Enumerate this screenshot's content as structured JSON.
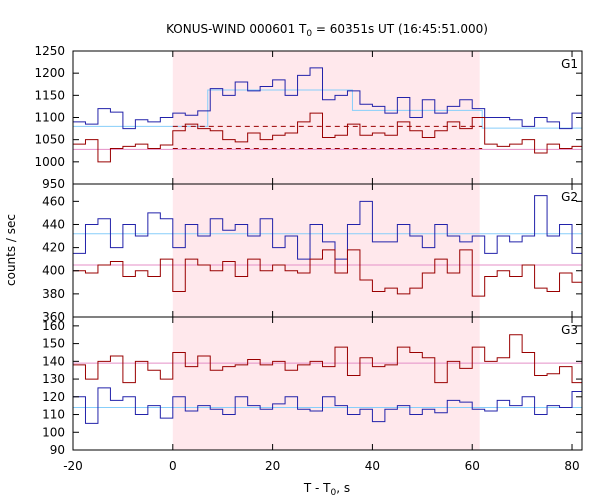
{
  "chart_data": {
    "type": "line",
    "title": "KONUS-WIND 000601 T",
    "title_sub": "0",
    "title_rest": " = 60351s UT (16:45:51.000)",
    "xlabel": "T - T",
    "xlabel_sub": "0",
    "xlabel_rest": ", s",
    "ylabel": "counts / sec",
    "xlim": [
      -20,
      82
    ],
    "xticks": [
      -20,
      0,
      20,
      40,
      60,
      80
    ],
    "xtick_labels": [
      "-20",
      "0",
      "20",
      "40",
      "60",
      "80"
    ],
    "shaded_interval": [
      0,
      61.5
    ],
    "colors": {
      "blue": "#2222aa",
      "red": "#990000",
      "cyan": "#87cefa",
      "pink": "#e48fc7",
      "shade": "#ffe8ec"
    },
    "panels": [
      {
        "label": "G1",
        "ylim": [
          950,
          1250
        ],
        "yticks": [
          950,
          1000,
          1050,
          1100,
          1150,
          1200,
          1250
        ],
        "ytick_labels": [
          "950",
          "1000",
          "1050",
          "1100",
          "1150",
          "1200",
          "1250"
        ],
        "bin_edges": [
          -20,
          -17.5,
          -15,
          -12.5,
          -10,
          -7.5,
          -5,
          -2.5,
          0,
          2.5,
          5,
          7.5,
          10,
          12.5,
          15,
          17.5,
          20,
          22.5,
          25,
          27.5,
          30,
          32.5,
          35,
          37.5,
          40,
          42.5,
          45,
          47.5,
          50,
          52.5,
          55,
          57.5,
          60,
          62.5,
          65,
          67.5,
          70,
          72.5,
          75,
          77.5,
          80,
          82
        ],
        "series": [
          {
            "color": "blue",
            "values": [
              1090,
              1085,
              1120,
              1112,
              1075,
              1095,
              1090,
              1100,
              1110,
              1105,
              1115,
              1165,
              1150,
              1180,
              1160,
              1170,
              1185,
              1150,
              1195,
              1212,
              1140,
              1150,
              1160,
              1130,
              1125,
              1110,
              1145,
              1100,
              1140,
              1110,
              1125,
              1140,
              1120,
              1100,
              1100,
              1095,
              1080,
              1100,
              1090,
              1075,
              1110
            ]
          },
          {
            "color": "red",
            "values": [
              1040,
              1050,
              1000,
              1030,
              1035,
              1040,
              1030,
              1038,
              1070,
              1085,
              1075,
              1070,
              1050,
              1045,
              1065,
              1050,
              1060,
              1065,
              1090,
              1110,
              1055,
              1060,
              1085,
              1060,
              1065,
              1060,
              1090,
              1070,
              1055,
              1070,
              1090,
              1075,
              1100,
              1040,
              1035,
              1040,
              1050,
              1020,
              1040,
              1030,
              1035
            ]
          }
        ],
        "steps": [
          {
            "color": "cyan",
            "points": [
              [
                -20,
                1080
              ],
              [
                7,
                1080
              ],
              [
                7,
                1162
              ],
              [
                36,
                1162
              ],
              [
                36,
                1116
              ],
              [
                62,
                1116
              ],
              [
                62,
                1076
              ],
              [
                82,
                1076
              ]
            ]
          }
        ],
        "hlines": [
          {
            "color": "pink",
            "y": 1028,
            "x": [
              -20,
              82
            ],
            "dashed": false
          },
          {
            "color": "red",
            "y": 1030,
            "x": [
              0,
              62
            ],
            "dashed": true
          },
          {
            "color": "red",
            "y": 1080,
            "x": [
              0,
              62
            ],
            "dashed": true
          }
        ]
      },
      {
        "label": "G2",
        "ylim": [
          360,
          475
        ],
        "yticks": [
          360,
          380,
          400,
          420,
          440,
          460
        ],
        "ytick_labels": [
          "360",
          "380",
          "400",
          "420",
          "440",
          "460"
        ],
        "bin_edges": [
          -20,
          -17.5,
          -15,
          -12.5,
          -10,
          -7.5,
          -5,
          -2.5,
          0,
          2.5,
          5,
          7.5,
          10,
          12.5,
          15,
          17.5,
          20,
          22.5,
          25,
          27.5,
          30,
          32.5,
          35,
          37.5,
          40,
          42.5,
          45,
          47.5,
          50,
          52.5,
          55,
          57.5,
          60,
          62.5,
          65,
          67.5,
          70,
          72.5,
          75,
          77.5,
          80,
          82
        ],
        "series": [
          {
            "color": "blue",
            "values": [
              415,
              440,
              445,
              420,
              440,
              430,
              450,
              445,
              420,
              440,
              430,
              445,
              435,
              440,
              430,
              445,
              420,
              430,
              410,
              440,
              425,
              410,
              440,
              460,
              425,
              425,
              440,
              430,
              420,
              440,
              430,
              425,
              430,
              415,
              430,
              425,
              430,
              465,
              430,
              440,
              415
            ]
          },
          {
            "color": "red",
            "values": [
              400,
              398,
              405,
              408,
              395,
              400,
              395,
              410,
              382,
              410,
              405,
              400,
              408,
              395,
              410,
              400,
              405,
              400,
              398,
              410,
              418,
              398,
              418,
              392,
              382,
              385,
              380,
              385,
              398,
              410,
              398,
              418,
              378,
              395,
              400,
              395,
              405,
              385,
              382,
              398,
              390
            ]
          }
        ],
        "steps": [
          {
            "color": "cyan",
            "points": [
              [
                -20,
                432
              ],
              [
                82,
                432
              ]
            ]
          }
        ],
        "hlines": [
          {
            "color": "pink",
            "y": 405,
            "x": [
              -20,
              82
            ],
            "dashed": false
          }
        ]
      },
      {
        "label": "G3",
        "ylim": [
          90,
          165
        ],
        "yticks": [
          90,
          100,
          110,
          120,
          130,
          140,
          150,
          160
        ],
        "ytick_labels": [
          "90",
          "100",
          "110",
          "120",
          "130",
          "140",
          "150",
          "160"
        ],
        "bin_edges": [
          -20,
          -17.5,
          -15,
          -12.5,
          -10,
          -7.5,
          -5,
          -2.5,
          0,
          2.5,
          5,
          7.5,
          10,
          12.5,
          15,
          17.5,
          20,
          22.5,
          25,
          27.5,
          30,
          32.5,
          35,
          37.5,
          40,
          42.5,
          45,
          47.5,
          50,
          52.5,
          55,
          57.5,
          60,
          62.5,
          65,
          67.5,
          70,
          72.5,
          75,
          77.5,
          80,
          82
        ],
        "series": [
          {
            "color": "blue",
            "values": [
              120,
              105,
              125,
              118,
              120,
              110,
              115,
              108,
              120,
              112,
              115,
              113,
              110,
              120,
              115,
              113,
              116,
              120,
              113,
              112,
              120,
              115,
              110,
              113,
              106,
              113,
              115,
              110,
              113,
              111,
              118,
              117,
              113,
              112,
              118,
              115,
              120,
              110,
              115,
              114,
              123
            ]
          },
          {
            "color": "red",
            "values": [
              138,
              130,
              140,
              143,
              128,
              140,
              135,
              130,
              145,
              137,
              143,
              135,
              137,
              138,
              141,
              138,
              140,
              135,
              138,
              140,
              137,
              148,
              132,
              142,
              137,
              138,
              148,
              145,
              142,
              128,
              140,
              136,
              148,
              140,
              142,
              155,
              145,
              132,
              133,
              137,
              128
            ]
          }
        ],
        "steps": [
          {
            "color": "cyan",
            "points": [
              [
                -20,
                114
              ],
              [
                82,
                114
              ]
            ]
          }
        ],
        "hlines": [
          {
            "color": "pink",
            "y": 139,
            "x": [
              -20,
              82
            ],
            "dashed": false
          }
        ]
      }
    ]
  }
}
